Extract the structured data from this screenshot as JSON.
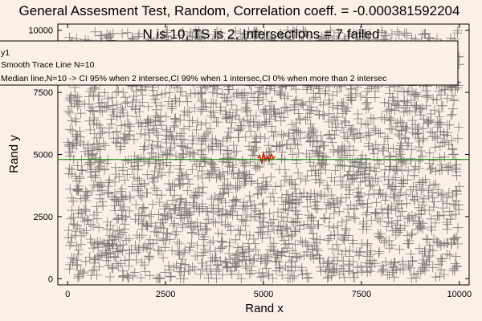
{
  "chart_data": {
    "type": "scatter",
    "title": "General Assesment Test, Random, Correlation coeff. = -0.000381592204",
    "subtitle": "N is 10, TS is 2, Intersections = 7 failed",
    "xlabel": "Rand x",
    "ylabel": "Rand y",
    "xlim": [
      -250,
      10250
    ],
    "ylim": [
      -250,
      10250
    ],
    "xticks": [
      0,
      2500,
      5000,
      7500,
      10000
    ],
    "yticks": [
      0,
      2500,
      5000,
      7500,
      10000
    ],
    "xtick_labels": [
      "0",
      "2500",
      "5000",
      "7500",
      "10000"
    ],
    "ytick_labels": [
      "0",
      "2500",
      "5000",
      "7500",
      "10000"
    ],
    "grid": false,
    "legend": {
      "placement": "top",
      "entries": [
        "y1",
        "Smooth Trace Line N=10",
        "Median line,N=10 -> CI 95% when 2 intersec,CI 99% when 1 intersec,CI 0% when more than 2 intersec"
      ]
    },
    "series": [
      {
        "marker": "plus",
        "color": "#1a1a1a",
        "distribution": "uniform",
        "x_range": [
          0,
          10000
        ],
        "y_range": [
          0,
          10000
        ],
        "approx_count": 3000
      },
      {
        "marker": "line",
        "color": "#cc2200",
        "x": [
          4850,
          4900,
          4950,
          5000,
          5050,
          5100,
          5150,
          5200,
          5250,
          5300
        ],
        "y": [
          4850,
          4950,
          4700,
          5050,
          4800,
          4900,
          4750,
          5000,
          4850,
          4900
        ]
      },
      {
        "marker": "line",
        "color": "#008000",
        "x": [
          -250,
          10250
        ],
        "y": [
          4800,
          4800
        ]
      }
    ]
  }
}
